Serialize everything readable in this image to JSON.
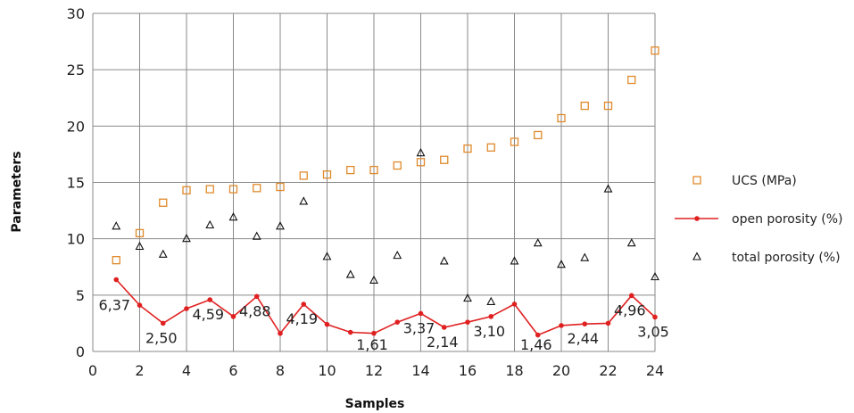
{
  "chart_data": {
    "type": "scatter",
    "xlabel": "Samples",
    "ylabel": "Parameters",
    "xlim": [
      0,
      24
    ],
    "ylim": [
      0,
      30
    ],
    "x_ticks": [
      "0",
      "2",
      "4",
      "6",
      "8",
      "10",
      "12",
      "14",
      "16",
      "18",
      "20",
      "22",
      "24"
    ],
    "y_ticks": [
      "0",
      "5",
      "10",
      "15",
      "20",
      "25",
      "30"
    ],
    "grid": "vertical and horizontal",
    "legend_position": "right",
    "x": [
      1,
      2,
      3,
      4,
      5,
      6,
      7,
      8,
      9,
      10,
      11,
      12,
      13,
      14,
      15,
      16,
      17,
      18,
      19,
      20,
      21,
      22,
      23,
      24
    ],
    "series": [
      {
        "name": "UCS (MPa)",
        "marker": "square",
        "color": "#e08a2c",
        "values": [
          8.1,
          10.5,
          13.2,
          14.3,
          14.4,
          14.4,
          14.5,
          14.6,
          15.6,
          15.7,
          16.1,
          16.1,
          16.5,
          16.8,
          17.0,
          18.0,
          18.1,
          18.6,
          19.2,
          20.7,
          21.8,
          21.8,
          24.1,
          26.7
        ]
      },
      {
        "name": "open porosity (%)",
        "marker": "line-dot",
        "color": "#e02020",
        "values": [
          6.37,
          4.1,
          2.5,
          3.8,
          4.59,
          3.1,
          4.88,
          1.6,
          4.19,
          2.4,
          1.7,
          1.61,
          2.6,
          3.37,
          2.14,
          2.6,
          3.1,
          4.2,
          1.46,
          2.3,
          2.44,
          2.5,
          4.96,
          3.05
        ]
      },
      {
        "name": "total porosity (%)",
        "marker": "triangle",
        "color": "#111111",
        "values": [
          11.1,
          9.3,
          8.6,
          10.0,
          11.2,
          11.9,
          10.2,
          11.1,
          13.3,
          8.4,
          6.8,
          6.3,
          8.5,
          17.6,
          8.0,
          4.7,
          4.4,
          8.0,
          9.6,
          7.7,
          8.3,
          14.4,
          9.6,
          6.6
        ]
      }
    ],
    "data_labels": [
      {
        "x": 1,
        "text": "6,37"
      },
      {
        "x": 3,
        "text": "2,50"
      },
      {
        "x": 5,
        "text": "4,59"
      },
      {
        "x": 7,
        "text": "4,88"
      },
      {
        "x": 9,
        "text": "4,19"
      },
      {
        "x": 12,
        "text": "1,61"
      },
      {
        "x": 14,
        "text": "3,37"
      },
      {
        "x": 15,
        "text": "2,14"
      },
      {
        "x": 17,
        "text": "3,10"
      },
      {
        "x": 19,
        "text": "1,46"
      },
      {
        "x": 21,
        "text": "2,44"
      },
      {
        "x": 23,
        "text": "4,96"
      },
      {
        "x": 24,
        "text": "3,05"
      }
    ]
  }
}
